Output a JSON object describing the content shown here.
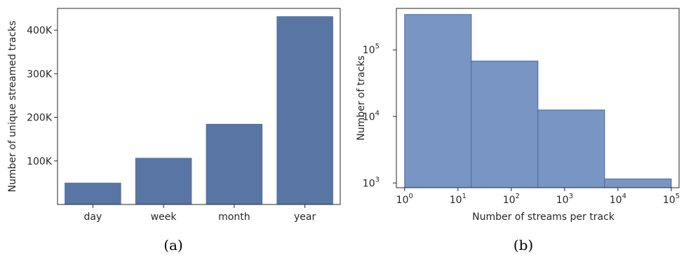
{
  "chart_data": [
    {
      "type": "bar",
      "caption": "(a)",
      "categories": [
        "day",
        "week",
        "month",
        "year"
      ],
      "values": [
        50000,
        107000,
        185000,
        432000
      ],
      "ylabel": "Number of unique streamed tracks",
      "xlabel": "",
      "ylim": [
        0,
        450000
      ],
      "yticks": [
        100000,
        200000,
        300000,
        400000
      ],
      "ytick_labels": [
        "100K",
        "200K",
        "300K",
        "400K"
      ],
      "bar_color": "#5975a4",
      "grid": false
    },
    {
      "type": "bar",
      "caption": "(b)",
      "title": "",
      "xscale": "log",
      "yscale": "log",
      "bins": [
        {
          "x0": 1,
          "x1": 17.8,
          "count": 340000
        },
        {
          "x0": 17.8,
          "x1": 316,
          "count": 68000
        },
        {
          "x0": 316,
          "x1": 5620,
          "count": 12500
        },
        {
          "x0": 5620,
          "x1": 100000,
          "count": 1150
        }
      ],
      "xlabel": "Number of streams per track",
      "ylabel": "Number of tracks",
      "xlim": [
        0.7,
        140000
      ],
      "ylim": [
        850,
        420000
      ],
      "xticks": [
        1,
        10,
        100,
        1000,
        10000,
        100000
      ],
      "xtick_labels": [
        {
          "base": "10",
          "exp": "0"
        },
        {
          "base": "10",
          "exp": "1"
        },
        {
          "base": "10",
          "exp": "2"
        },
        {
          "base": "10",
          "exp": "3"
        },
        {
          "base": "10",
          "exp": "4"
        },
        {
          "base": "10",
          "exp": "5"
        }
      ],
      "yticks": [
        1000,
        10000,
        100000
      ],
      "ytick_labels": [
        {
          "base": "10",
          "exp": "3"
        },
        {
          "base": "10",
          "exp": "4"
        },
        {
          "base": "10",
          "exp": "5"
        }
      ],
      "bar_color": "#7895c4",
      "edge_color": "#4a6aa0",
      "grid": false
    }
  ]
}
